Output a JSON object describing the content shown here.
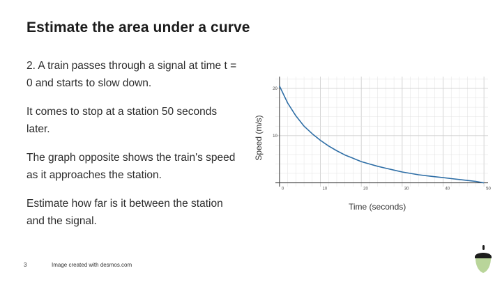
{
  "slide": {
    "title": "Estimate the area under a curve",
    "paragraphs": [
      "2.  A train passes through a signal at time t = 0 and starts to slow down.",
      "It comes to stop at a station 50 seconds later.",
      "The graph opposite shows the train's speed as it approaches the station.",
      "Estimate how far is it between the station and the signal."
    ],
    "page_number": "3",
    "credit": "Image created with desmos.com"
  },
  "colors": {
    "curve": "#2e6ea6",
    "grid": "#e2e2e2",
    "axis": "#444444"
  },
  "chart_data": {
    "type": "line",
    "xlabel": "Time (seconds)",
    "ylabel": "Speed (m/s)",
    "xlim": [
      -1,
      51
    ],
    "ylim": [
      -0.8,
      22.5
    ],
    "x_ticks": [
      0,
      10,
      20,
      30,
      40,
      50
    ],
    "x_tick_labels": [
      "0",
      "10",
      "20",
      "30",
      "40",
      "50"
    ],
    "y_ticks": [
      20,
      10
    ],
    "y_tick_labels": [
      "20",
      "10"
    ],
    "grid": true,
    "series": [
      {
        "x": [
          0,
          2,
          4,
          6,
          8,
          10,
          12,
          14,
          16,
          18,
          20,
          22,
          24,
          26,
          28,
          30,
          32,
          34,
          36,
          38,
          40,
          42,
          44,
          46,
          48,
          50
        ],
        "y": [
          20.5,
          16.9,
          14.2,
          12.0,
          10.4,
          9.0,
          7.8,
          6.8,
          5.9,
          5.2,
          4.5,
          4.0,
          3.5,
          3.1,
          2.7,
          2.3,
          2.0,
          1.7,
          1.5,
          1.3,
          1.1,
          0.9,
          0.7,
          0.5,
          0.3,
          0.0
        ]
      }
    ]
  }
}
